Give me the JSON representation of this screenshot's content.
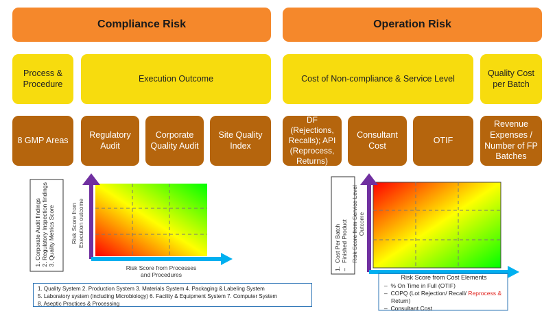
{
  "headers": {
    "compliance": "Compliance Risk",
    "operation": "Operation Risk"
  },
  "yellow": {
    "process_procedure": "Process & Procedure",
    "execution_outcome": "Execution Outcome",
    "cost_noncompliance": "Cost of Non-compliance & Service Level",
    "quality_cost": "Quality Cost per Batch"
  },
  "brown": {
    "gmp_areas": "8 GMP Areas",
    "regulatory_audit": "Regulatory Audit",
    "corporate_audit": "Corporate Quality Audit",
    "site_quality": "Site Quality Index",
    "df_api": "DF (Rejections, Recalls); API (Reprocess, Returns)",
    "consultant_cost": "Consultant Cost",
    "otif": "OTIF",
    "revenue_expenses": "Revenue Expenses / Number of FP Batches"
  },
  "left_chart": {
    "y_list": [
      "Corporate Audit findings",
      "Regulatory Inspection findings",
      "Quality Metrics Score"
    ],
    "y_label": "Risk Score from Execution outcome",
    "x_label": "Risk Score from Processes and Procedures"
  },
  "gmp_legend": {
    "line1": "1.  Quality System    2.  Production System    3.  Materials System    4.  Packaging & Labeling System",
    "line2": "5.   Laboratory system (including Microbiology)    6.  Facility & Equipment System    7.  Computer System",
    "line3": "8.  Aseptic Practices & Processing"
  },
  "right_chart": {
    "y_list_1": "Cost Per Batch",
    "y_list_2": "Finished Product",
    "y_label": "Risk Score from Service Level Outcome",
    "x_label": "Risk Score from Cost Elements"
  },
  "cost_legend": {
    "item1": "% On Time in Full (OTIF)",
    "item2_a": "COPQ (Lot Rejection/ Recall/ ",
    "item2_b": "Reprocess &",
    "item2_c": "Return)",
    "item3": "Consultant Cost"
  },
  "colors": {
    "header": "#f5882b",
    "yellow": "#f7dc0e",
    "brown": "#b5650d",
    "y_arrow": "#7030a0",
    "x_arrow": "#00b0f0"
  }
}
